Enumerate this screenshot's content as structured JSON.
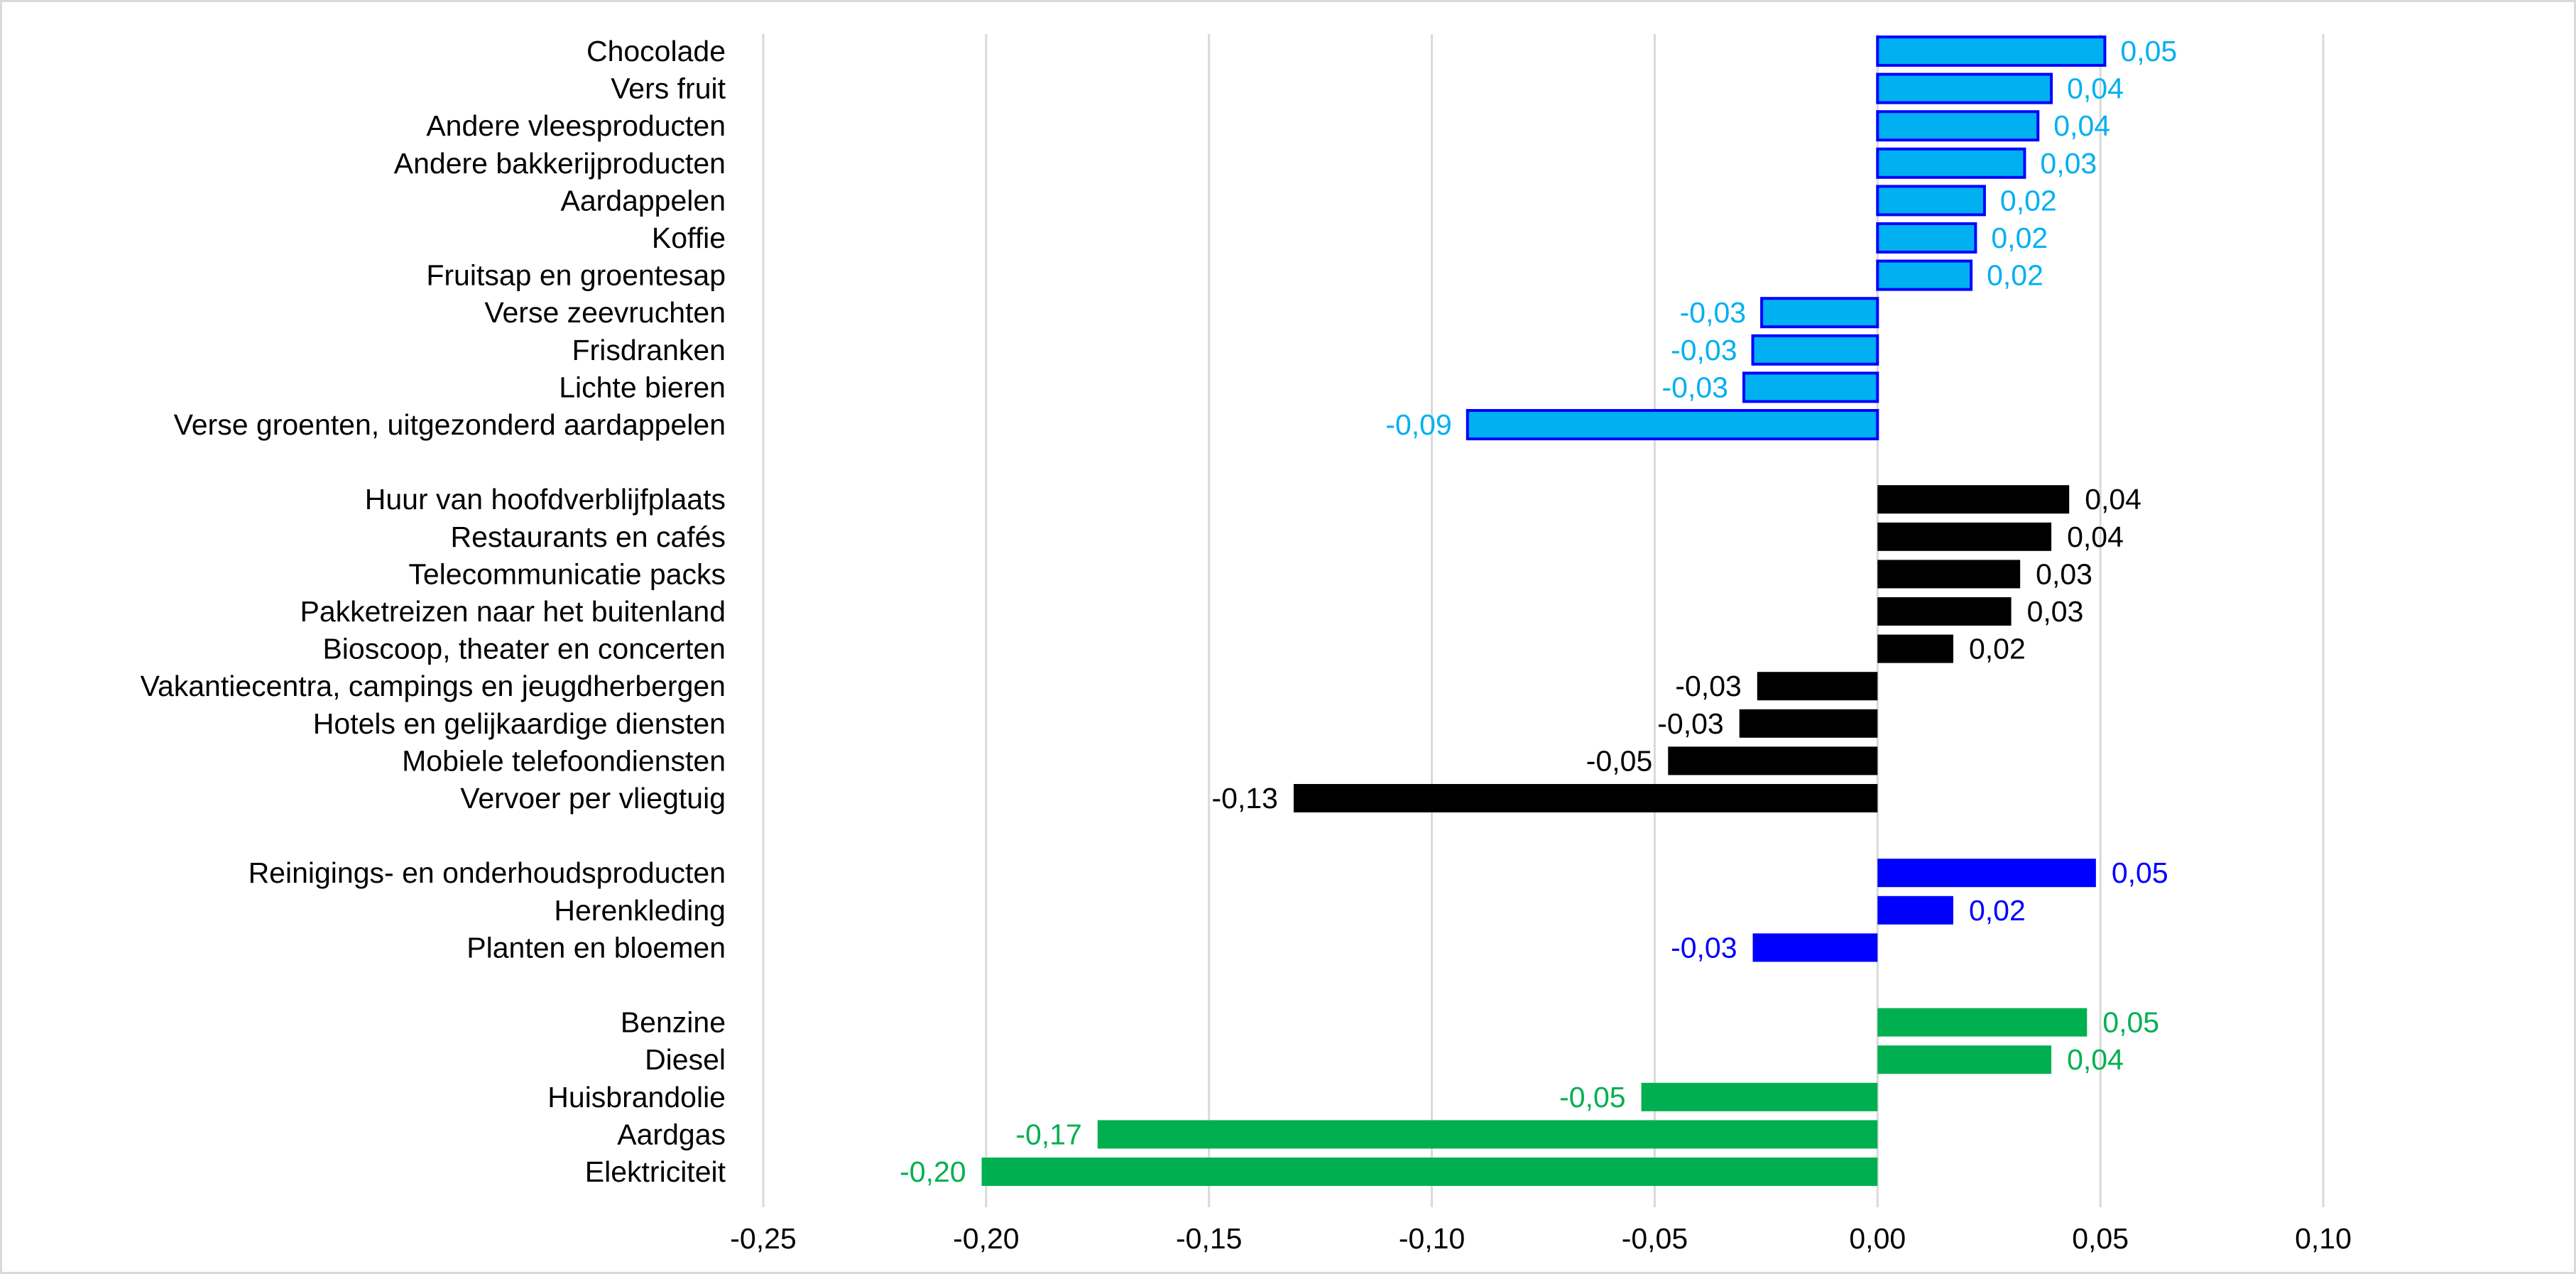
{
  "chart_data": {
    "type": "bar",
    "orientation": "horizontal",
    "title": "",
    "xlabel": "",
    "ylabel": "",
    "xlim": [
      -0.25,
      0.1
    ],
    "x_ticks": [
      -0.25,
      -0.2,
      -0.15,
      -0.1,
      -0.05,
      0.0,
      0.05,
      0.1
    ],
    "x_tick_labels": [
      "-0,25",
      "-0,20",
      "-0,15",
      "-0,10",
      "-0,05",
      "0,00",
      "0,05",
      "0,10"
    ],
    "grid": "vertical",
    "legend": "none",
    "groups": [
      {
        "name": "group-1",
        "color": "#00b0f0",
        "label_color": "#00b0f0",
        "outline": "#0000ff",
        "categories": [
          "Chocolade",
          "Vers fruit",
          "Andere vleesproducten",
          "Andere bakkerijproducten",
          "Aardappelen",
          "Koffie",
          "Fruitsap en groentesap",
          "Verse zeevruchten",
          "Frisdranken",
          "Lichte bieren",
          "Verse groenten, uitgezonderd aardappelen"
        ],
        "values": [
          0.051,
          0.039,
          0.036,
          0.033,
          0.024,
          0.022,
          0.021,
          -0.026,
          -0.028,
          -0.03,
          -0.092
        ],
        "labels": [
          "0,05",
          "0,04",
          "0,04",
          "0,03",
          "0,02",
          "0,02",
          "0,02",
          "-0,03",
          "-0,03",
          "-0,03",
          "-0,09"
        ]
      },
      {
        "name": "group-2",
        "color": "#000000",
        "label_color": "#000000",
        "outline": null,
        "categories": [
          "Huur van hoofdverblijfplaats",
          "Restaurants en cafés",
          "Telecommunicatie packs",
          "Pakketreizen naar het buitenland",
          "Bioscoop, theater en concerten",
          "Vakantiecentra, campings en jeugdherbergen",
          "Hotels en gelijkaardige diensten",
          "Mobiele telefoondiensten",
          "Vervoer per vliegtuig"
        ],
        "values": [
          0.043,
          0.039,
          0.032,
          0.03,
          0.017,
          -0.027,
          -0.031,
          -0.047,
          -0.131
        ],
        "labels": [
          "0,04",
          "0,04",
          "0,03",
          "0,03",
          "0,02",
          "-0,03",
          "-0,03",
          "-0,05",
          "-0,13"
        ]
      },
      {
        "name": "group-3",
        "color": "#0000ff",
        "label_color": "#0000ff",
        "outline": null,
        "categories": [
          "Reinigings- en onderhoudsproducten",
          "Herenkleding",
          "Planten en bloemen"
        ],
        "values": [
          0.049,
          0.017,
          -0.028
        ],
        "labels": [
          "0,05",
          "0,02",
          "-0,03"
        ]
      },
      {
        "name": "group-4",
        "color": "#00b050",
        "label_color": "#00b050",
        "outline": null,
        "categories": [
          "Benzine",
          "Diesel",
          "Huisbrandolie",
          "Aardgas",
          "Elektriciteit"
        ],
        "values": [
          0.047,
          0.039,
          -0.053,
          -0.175,
          -0.201
        ],
        "labels": [
          "0,05",
          "0,04",
          "-0,05",
          "-0,17",
          "-0,20"
        ]
      }
    ]
  }
}
